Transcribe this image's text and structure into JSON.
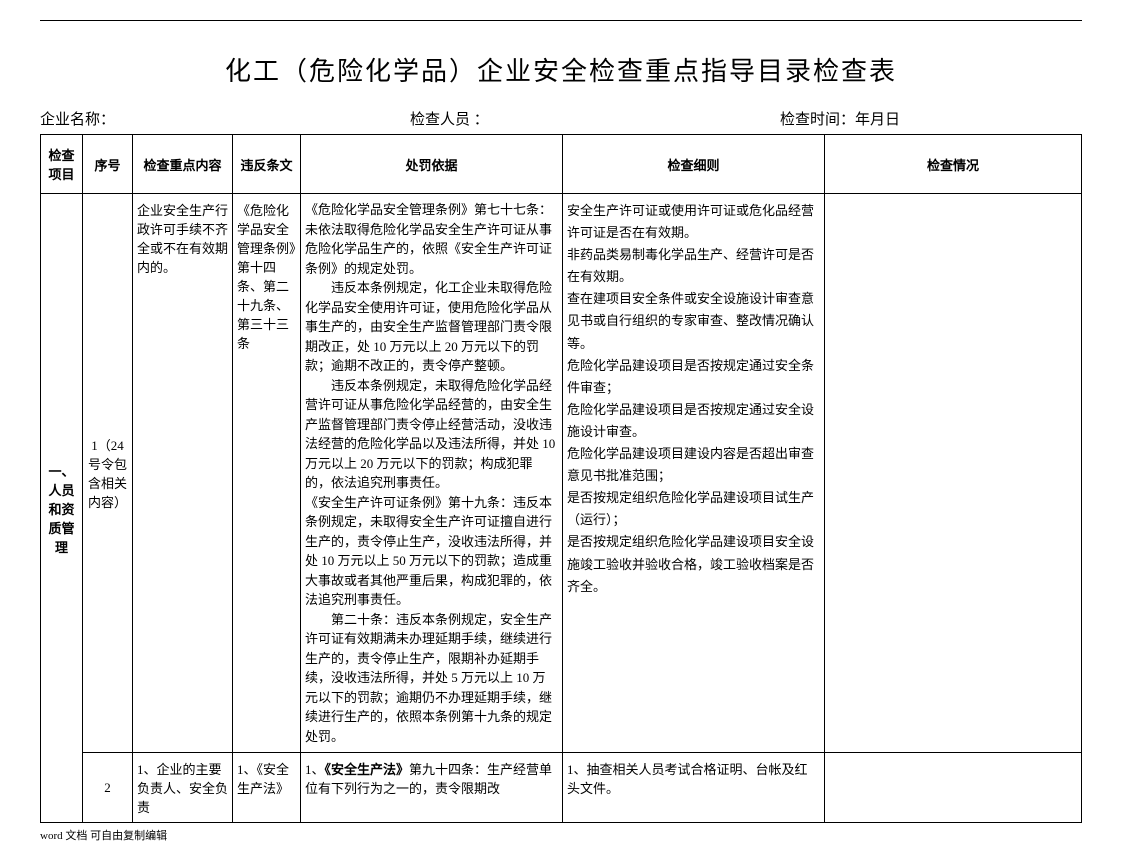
{
  "title": "化工（危险化学品）企业安全检查重点指导目录检查表",
  "header": {
    "company_label": "企业名称：",
    "inspector_label": "检查人员 ：",
    "date_label": "检查时间：年月日"
  },
  "columns": {
    "project": "检查项目",
    "seq": "序号",
    "content": "检查重点内容",
    "provision": "违反条文",
    "basis": "处罚依据",
    "rules": "检查细则",
    "status": "检查情况"
  },
  "section_label": "一、人员和资质管理",
  "row1": {
    "seq": "1（24号令包含相关内容）",
    "content": "企业安全生产行政许可手续不齐全或不在有效期内的。",
    "provision": "《危险化学品安全管理条例》第十四条、第二十九条、第三十三条",
    "basis_p1": "《危险化学品安全管理条例》第七十七条：未依法取得危险化学品安全生产许可证从事危险化学品生产的，依照《安全生产许可证条例》的规定处罚。",
    "basis_p2": "违反本条例规定，化工企业未取得危险化学品安全使用许可证，使用危险化学品从事生产的，由安全生产监督管理部门责令限期改正，处 10 万元以上 20 万元以下的罚款；逾期不改正的，责令停产整顿。",
    "basis_p3": "违反本条例规定，未取得危险化学品经营许可证从事危险化学品经营的，由安全生产监督管理部门责令停止经营活动，没收违法经营的危险化学品以及违法所得，并处 10 万元以上 20 万元以下的罚款；构成犯罪的，依法追究刑事责任。",
    "basis_p4": "《安全生产许可证条例》第十九条：违反本条例规定，未取得安全生产许可证擅自进行生产的，责令停止生产，没收违法所得，并处 10 万元以上 50 万元以下的罚款；造成重大事故或者其他严重后果，构成犯罪的，依法追究刑事责任。",
    "basis_p5": "第二十条：违反本条例规定，安全生产许可证有效期满未办理延期手续，继续进行生产的，责令停止生产，限期补办延期手续，没收违法所得，并处 5 万元以上 10 万元以下的罚款；逾期仍不办理延期手续，继续进行生产的，依照本条例第十九条的规定处罚。",
    "rules_l1": "安全生产许可证或使用许可证或危化品经营许可证是否在有效期。",
    "rules_l2": "非药品类易制毒化学品生产、经营许可是否在有效期。",
    "rules_l3": "查在建项目安全条件或安全设施设计审查意见书或自行组织的专家审查、整改情况确认等。",
    "rules_l4": "危险化学品建设项目是否按规定通过安全条件审查；",
    "rules_l5": "危险化学品建设项目是否按规定通过安全设施设计审查。",
    "rules_l6": "危险化学品建设项目建设内容是否超出审查意见书批准范围；",
    "rules_l7": "是否按规定组织危险化学品建设项目试生产（运行）；",
    "rules_l8": "是否按规定组织危险化学品建设项目安全设施竣工验收并验收合格，竣工验收档案是否齐全。"
  },
  "row2": {
    "seq": "2",
    "content": "1、企业的主要负责人、安全负责",
    "provision": "1、《安全生产法》",
    "basis": "1、《安全生产法》第九十四条：生产经营单位有下列行为之一的，责令限期改",
    "rules": "1、抽查相关人员考试合格证明、台帐及红头文件。"
  },
  "footer": "word 文档 可自由复制编辑"
}
